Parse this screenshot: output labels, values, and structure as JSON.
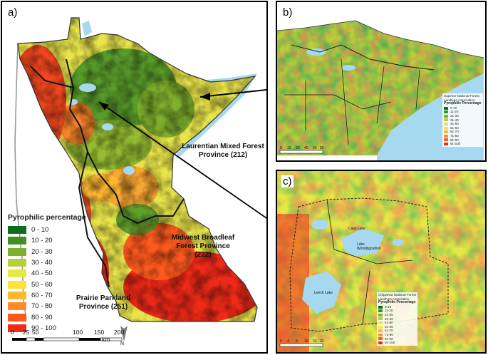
{
  "panel_a": {
    "label": "a)",
    "legend_title": "Pyrophilic percentage",
    "legend": [
      {
        "label": "0 - 10",
        "color": "#0a6e1a"
      },
      {
        "label": "10 - 20",
        "color": "#3f8f24"
      },
      {
        "label": "20 - 30",
        "color": "#7fb02c"
      },
      {
        "label": "30 - 40",
        "color": "#b6cf3a"
      },
      {
        "label": "40 - 50",
        "color": "#e6e845"
      },
      {
        "label": "50 - 60",
        "color": "#ffe23a"
      },
      {
        "label": "60 - 70",
        "color": "#ffb830"
      },
      {
        "label": "70 - 80",
        "color": "#ff8c26"
      },
      {
        "label": "80 - 90",
        "color": "#ff5a1e"
      },
      {
        "label": "90 - 100",
        "color": "#f02a18"
      }
    ],
    "provinces": {
      "laurentian": [
        "Laurentian Mixed Forest",
        "Province (212)"
      ],
      "midwest": [
        "Midwest Broadleaf",
        "Forest Province (222)"
      ],
      "prairie": [
        "Prairie Parkland",
        "Province (251)"
      ]
    },
    "scale": {
      "ticks": [
        "0",
        "25",
        "50",
        "100",
        "150",
        "200"
      ],
      "unit": "km"
    },
    "north": "N"
  },
  "panel_b": {
    "label": "b)",
    "legend_boundary": "Superior National Forest",
    "legend_assoc": "Landtype Association",
    "legend_title": "Pyrophilic Percentage",
    "legend": [
      "0-10",
      "11-20",
      "21-30",
      "31-40",
      "41-50",
      "51-60",
      "61-70",
      "71-80",
      "81-90",
      "91-100"
    ],
    "scale": [
      "0",
      "10",
      "20",
      "40",
      "60",
      "80"
    ]
  },
  "panel_c": {
    "label": "c)",
    "legend_boundary": "Chippewa National Forest",
    "legend_assoc": "Landtype Association",
    "legend_title": "Pyrophilic Percentage",
    "legend": [
      "0-10",
      "11-20",
      "21-30",
      "31-40",
      "41-50",
      "51-60",
      "61-70",
      "71-80",
      "81-90",
      "91-100"
    ],
    "scale": [
      "0",
      "4",
      "8",
      "16",
      "24",
      "32"
    ],
    "lakes": [
      "Cass Lake",
      "Lake Winnibigoshish",
      "Leech Lake"
    ]
  },
  "colors": {
    "water": "#a6d8f0",
    "border": "#000000"
  }
}
